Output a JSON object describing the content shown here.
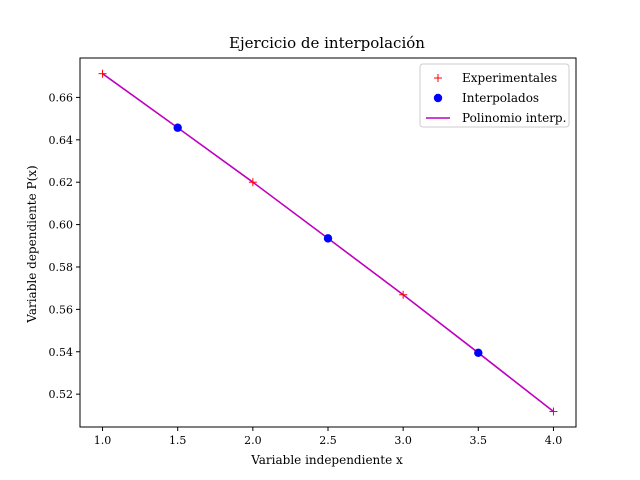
{
  "chart_data": {
    "type": "line",
    "title": "Ejercicio de interpolación",
    "xlabel": "Variable independiente x",
    "ylabel": "Variable dependiente P(x)",
    "xlim": [
      0.85,
      4.15
    ],
    "ylim": [
      0.5045,
      0.6786
    ],
    "x_ticks": [
      "1.0",
      "1.5",
      "2.0",
      "2.5",
      "3.0",
      "3.5",
      "4.0"
    ],
    "y_ticks": [
      "0.52",
      "0.54",
      "0.56",
      "0.58",
      "0.60",
      "0.62",
      "0.64",
      "0.66"
    ],
    "grid": false,
    "legend_position": "top-right",
    "series": [
      {
        "name": "Experimentales",
        "marker": "plus",
        "color": "#ff0000",
        "x": [
          1.0,
          2.0,
          3.0,
          4.0
        ],
        "y": [
          0.6712,
          0.62,
          0.5669,
          0.5118
        ]
      },
      {
        "name": "Interpolados",
        "marker": "circle",
        "color": "#0000ff",
        "x": [
          1.5,
          2.5,
          3.5
        ],
        "y": [
          0.6457,
          0.5935,
          0.5395
        ]
      },
      {
        "name": "Polinomio interp.",
        "marker": "line",
        "color": "#bf00bf",
        "x": [
          1.0,
          1.5,
          2.0,
          2.5,
          3.0,
          3.5,
          4.0
        ],
        "y": [
          0.6712,
          0.6457,
          0.62,
          0.5935,
          0.5669,
          0.5395,
          0.5118
        ]
      }
    ]
  }
}
